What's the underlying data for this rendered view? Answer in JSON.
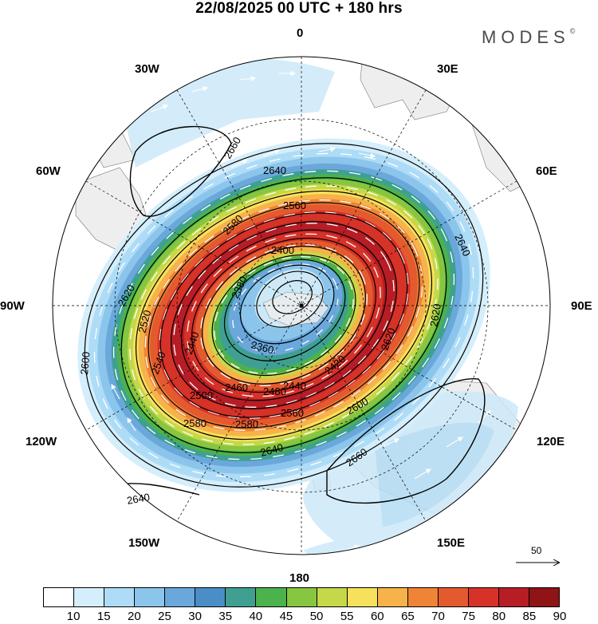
{
  "title": "22/08/2025  00 UTC  + 180 hrs",
  "brand": {
    "text": "MODES",
    "mark": "©"
  },
  "longitude_labels": {
    "lon_0": "0",
    "lon_30e": "30E",
    "lon_60e": "60E",
    "lon_90e": "90E",
    "lon_120e": "120E",
    "lon_150e": "150E",
    "lon_180": "180",
    "lon_150w": "150W",
    "lon_120w": "120W",
    "lon_90w": "90W",
    "lon_60w": "60W",
    "lon_30w": "30W"
  },
  "reference_vector": {
    "label": "50"
  },
  "contour_labels": [
    "2660",
    "2640",
    "2640",
    "2620",
    "2620",
    "2600",
    "2600",
    "2580",
    "2580",
    "2560",
    "2540",
    "2520",
    "2500",
    "2480",
    "2460",
    "2440",
    "2440",
    "2420",
    "2400",
    "2380",
    "2360",
    "2640",
    "2660",
    "2640",
    "2620",
    "2580",
    "2560"
  ],
  "colorbar": {
    "ticks": [
      "10",
      "15",
      "20",
      "25",
      "30",
      "35",
      "40",
      "45",
      "50",
      "55",
      "60",
      "65",
      "70",
      "75",
      "80",
      "85",
      "90"
    ],
    "colors": [
      "#ffffff",
      "#d4eefb",
      "#aedcf6",
      "#8cc5ec",
      "#6aa8dc",
      "#4b8dc6",
      "#3fa092",
      "#4cb24c",
      "#86c640",
      "#c5d84a",
      "#f7e05c",
      "#f6b34a",
      "#ef8437",
      "#e45a2f",
      "#d63228",
      "#b71d25",
      "#8e1416"
    ]
  }
}
